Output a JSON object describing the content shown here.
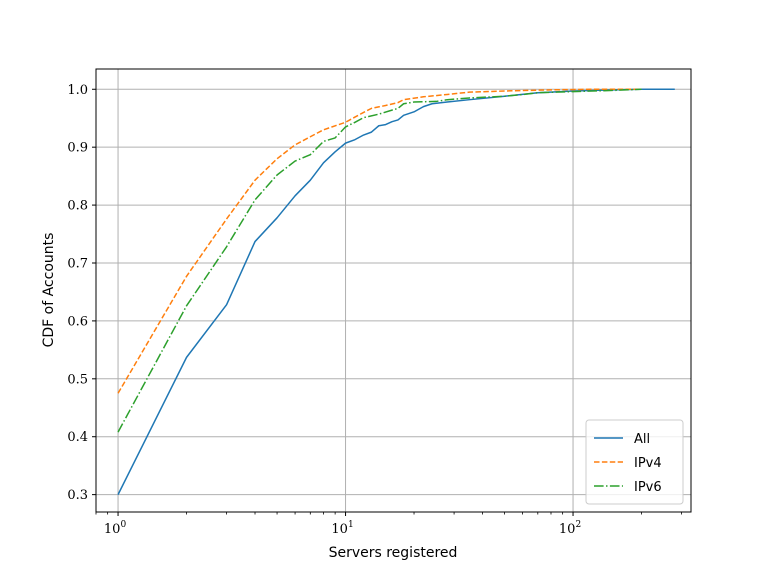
{
  "chart_data": {
    "type": "line",
    "title": "",
    "xlabel": "Servers registered",
    "ylabel": "CDF of Accounts",
    "xscale": "log",
    "xlim": [
      0.8,
      330
    ],
    "ylim": [
      0.27,
      1.035
    ],
    "xticks": [
      {
        "value": 1,
        "label": "10^0",
        "base": "10",
        "exp": "0"
      },
      {
        "value": 10,
        "label": "10^1",
        "base": "10",
        "exp": "1"
      },
      {
        "value": 100,
        "label": "10^2",
        "base": "10",
        "exp": "2"
      }
    ],
    "yticks": [
      "0.3",
      "0.4",
      "0.5",
      "0.6",
      "0.7",
      "0.8",
      "0.9",
      "1.0"
    ],
    "grid": true,
    "legend_position": "lower-right",
    "series": [
      {
        "name": "All",
        "color": "#1f77b4",
        "dash": "solid",
        "points": [
          [
            1,
            0.3
          ],
          [
            2,
            0.537
          ],
          [
            3,
            0.628
          ],
          [
            4,
            0.737
          ],
          [
            5,
            0.778
          ],
          [
            6,
            0.816
          ],
          [
            7,
            0.843
          ],
          [
            8,
            0.873
          ],
          [
            9,
            0.892
          ],
          [
            10,
            0.907
          ],
          [
            11,
            0.913
          ],
          [
            12,
            0.921
          ],
          [
            13,
            0.926
          ],
          [
            14,
            0.937
          ],
          [
            15,
            0.939
          ],
          [
            16,
            0.944
          ],
          [
            17,
            0.947
          ],
          [
            18,
            0.955
          ],
          [
            20,
            0.961
          ],
          [
            22,
            0.97
          ],
          [
            24,
            0.975
          ],
          [
            28,
            0.978
          ],
          [
            35,
            0.982
          ],
          [
            50,
            0.988
          ],
          [
            70,
            0.994
          ],
          [
            100,
            0.997
          ],
          [
            150,
            0.999
          ],
          [
            200,
            1.0
          ],
          [
            280,
            1.0
          ]
        ]
      },
      {
        "name": "IPv4",
        "color": "#ff7f0e",
        "dash": "dashed",
        "points": [
          [
            1,
            0.475
          ],
          [
            2,
            0.677
          ],
          [
            3,
            0.776
          ],
          [
            4,
            0.843
          ],
          [
            5,
            0.88
          ],
          [
            6,
            0.904
          ],
          [
            7,
            0.918
          ],
          [
            8,
            0.93
          ],
          [
            10,
            0.943
          ],
          [
            11,
            0.952
          ],
          [
            12,
            0.96
          ],
          [
            13,
            0.967
          ],
          [
            15,
            0.972
          ],
          [
            17,
            0.977
          ],
          [
            18,
            0.982
          ],
          [
            22,
            0.987
          ],
          [
            28,
            0.991
          ],
          [
            35,
            0.995
          ],
          [
            50,
            0.997
          ],
          [
            80,
            0.999
          ],
          [
            120,
            1.0
          ],
          [
            200,
            1.0
          ]
        ]
      },
      {
        "name": "IPv6",
        "color": "#2ca02c",
        "dash": "dashdot",
        "points": [
          [
            1,
            0.408
          ],
          [
            2,
            0.626
          ],
          [
            3,
            0.728
          ],
          [
            4,
            0.809
          ],
          [
            5,
            0.852
          ],
          [
            6,
            0.876
          ],
          [
            7,
            0.887
          ],
          [
            8,
            0.91
          ],
          [
            9,
            0.916
          ],
          [
            10,
            0.935
          ],
          [
            11,
            0.943
          ],
          [
            12,
            0.951
          ],
          [
            14,
            0.957
          ],
          [
            16,
            0.964
          ],
          [
            17,
            0.967
          ],
          [
            18,
            0.975
          ],
          [
            20,
            0.978
          ],
          [
            25,
            0.979
          ],
          [
            28,
            0.982
          ],
          [
            35,
            0.985
          ],
          [
            50,
            0.988
          ],
          [
            60,
            0.991
          ],
          [
            70,
            0.994
          ],
          [
            100,
            0.996
          ],
          [
            150,
            0.998
          ],
          [
            200,
            1.0
          ]
        ]
      }
    ]
  }
}
